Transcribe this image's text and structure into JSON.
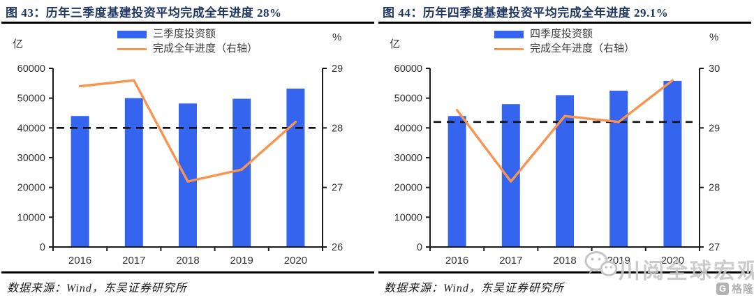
{
  "colors": {
    "title": "#1f3864",
    "bar": "#3564ee",
    "line": "#f8944f",
    "dashed": "#111111",
    "axis": "#1a1a1a",
    "tick_text": "#333333",
    "watermark": "#c6c6c6"
  },
  "panels": [
    {
      "source": "数据来源：Wind，东吴证券研究所"
    },
    {
      "source": "数据来源：Wind，东吴证券研究所"
    }
  ],
  "watermark": {
    "wechat_icon": "wechat-icon",
    "wechat_text": "川阅全球宏观",
    "logo_letter": "G",
    "logo_text": "格隆汇"
  },
  "chart_data": [
    {
      "type": "bar",
      "title": "图 43：历年三季度基建投资平均完成全年进度 28%",
      "categories": [
        "2016",
        "2017",
        "2018",
        "2019",
        "2020"
      ],
      "series": [
        {
          "name": "三季度投资额",
          "type": "bar",
          "axis": "left",
          "values": [
            44000,
            50000,
            48200,
            49800,
            53200
          ]
        },
        {
          "name": "完成全年进度（右轴）",
          "type": "line",
          "axis": "right",
          "values": [
            28.7,
            28.8,
            27.1,
            27.3,
            28.1
          ]
        }
      ],
      "average_line": {
        "axis": "right",
        "value": 28,
        "style": "dashed"
      },
      "left_axis": {
        "label": "亿",
        "min": 0,
        "max": 60000,
        "ticks": [
          0,
          10000,
          20000,
          30000,
          40000,
          50000,
          60000
        ]
      },
      "right_axis": {
        "label": "%",
        "min": 26,
        "max": 29,
        "ticks": [
          26,
          27,
          28,
          29
        ]
      },
      "legend_position": "top",
      "grid": false
    },
    {
      "type": "bar",
      "title": "图 44：历年四季度基建投资平均完成全年进度 29.1%",
      "categories": [
        "2016",
        "2017",
        "2018",
        "2019",
        "2020"
      ],
      "series": [
        {
          "name": "四季度投资额",
          "type": "bar",
          "axis": "left",
          "values": [
            44000,
            48000,
            51000,
            52500,
            55800
          ]
        },
        {
          "name": "完成全年进度（右轴）",
          "type": "line",
          "axis": "right",
          "values": [
            29.3,
            28.1,
            29.2,
            29.1,
            29.8
          ]
        }
      ],
      "average_line": {
        "axis": "right",
        "value": 29.1,
        "style": "dashed"
      },
      "left_axis": {
        "label": "亿",
        "min": 0,
        "max": 60000,
        "ticks": [
          0,
          10000,
          20000,
          30000,
          40000,
          50000,
          60000
        ]
      },
      "right_axis": {
        "label": "%",
        "min": 27,
        "max": 30,
        "ticks": [
          27,
          28,
          29,
          30
        ]
      },
      "legend_position": "top",
      "grid": false
    }
  ]
}
